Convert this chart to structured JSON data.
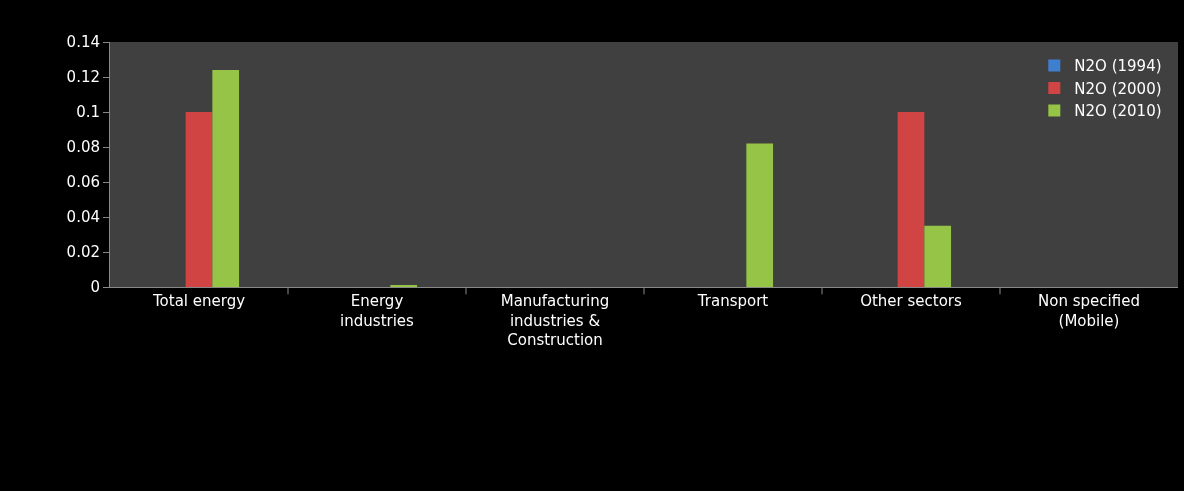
{
  "chart_data": {
    "type": "bar",
    "categories": [
      "Total energy",
      "Energy\nindustries",
      "Manufacturing\nindustries &\nConstruction",
      "Transport",
      "Other sectors",
      "Non specified\n(Mobile)"
    ],
    "series": [
      {
        "name": "N2O (1994)",
        "color": "#3f7fd0",
        "values": [
          0,
          0,
          0,
          0,
          0,
          0
        ]
      },
      {
        "name": "N2O (2000)",
        "color": "#d04444",
        "values": [
          0.1,
          0,
          0,
          0,
          0.1,
          0
        ]
      },
      {
        "name": "N2O (2010)",
        "color": "#96c447",
        "values": [
          0.124,
          0.001,
          0,
          0.082,
          0.035,
          0
        ]
      }
    ],
    "ylim": [
      0,
      0.14
    ],
    "yticks": [
      0,
      0.02,
      0.04,
      0.06,
      0.08,
      0.1,
      0.12,
      0.14
    ],
    "grid": false,
    "legend": "top right"
  }
}
